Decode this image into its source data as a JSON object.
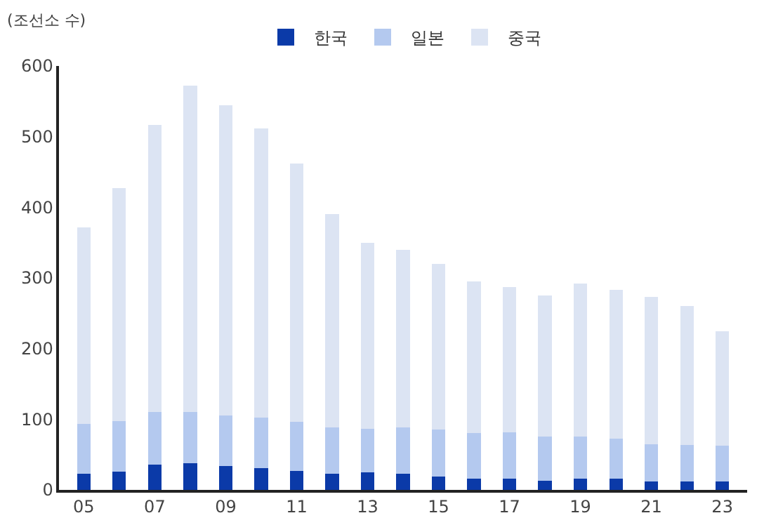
{
  "chart_data": {
    "type": "bar",
    "stacked": true,
    "ylabel": "(조선소 수)",
    "categories": [
      "05",
      null,
      "07",
      null,
      "09",
      null,
      "11",
      null,
      "13",
      null,
      "15",
      null,
      "17",
      null,
      "19",
      null,
      "21",
      null,
      "23"
    ],
    "series": [
      {
        "name": "한국",
        "color": "#0b3aa8",
        "values": [
          23,
          26,
          36,
          38,
          34,
          31,
          27,
          23,
          25,
          23,
          19,
          16,
          16,
          13,
          16,
          16,
          12,
          12,
          12
        ]
      },
      {
        "name": "일본",
        "color": "#b4c9ef",
        "values": [
          70,
          71,
          74,
          72,
          71,
          71,
          69,
          65,
          61,
          65,
          66,
          64,
          65,
          63,
          60,
          57,
          53,
          52,
          51
        ]
      },
      {
        "name": "중국",
        "color": "#dce4f3",
        "values": [
          279,
          330,
          407,
          462,
          439,
          410,
          366,
          302,
          264,
          252,
          235,
          215,
          206,
          199,
          216,
          210,
          208,
          196,
          162
        ]
      }
    ],
    "ylim": [
      0,
      600
    ],
    "yticks": [
      0,
      100,
      200,
      300,
      400,
      500,
      600
    ],
    "legend": "top"
  }
}
